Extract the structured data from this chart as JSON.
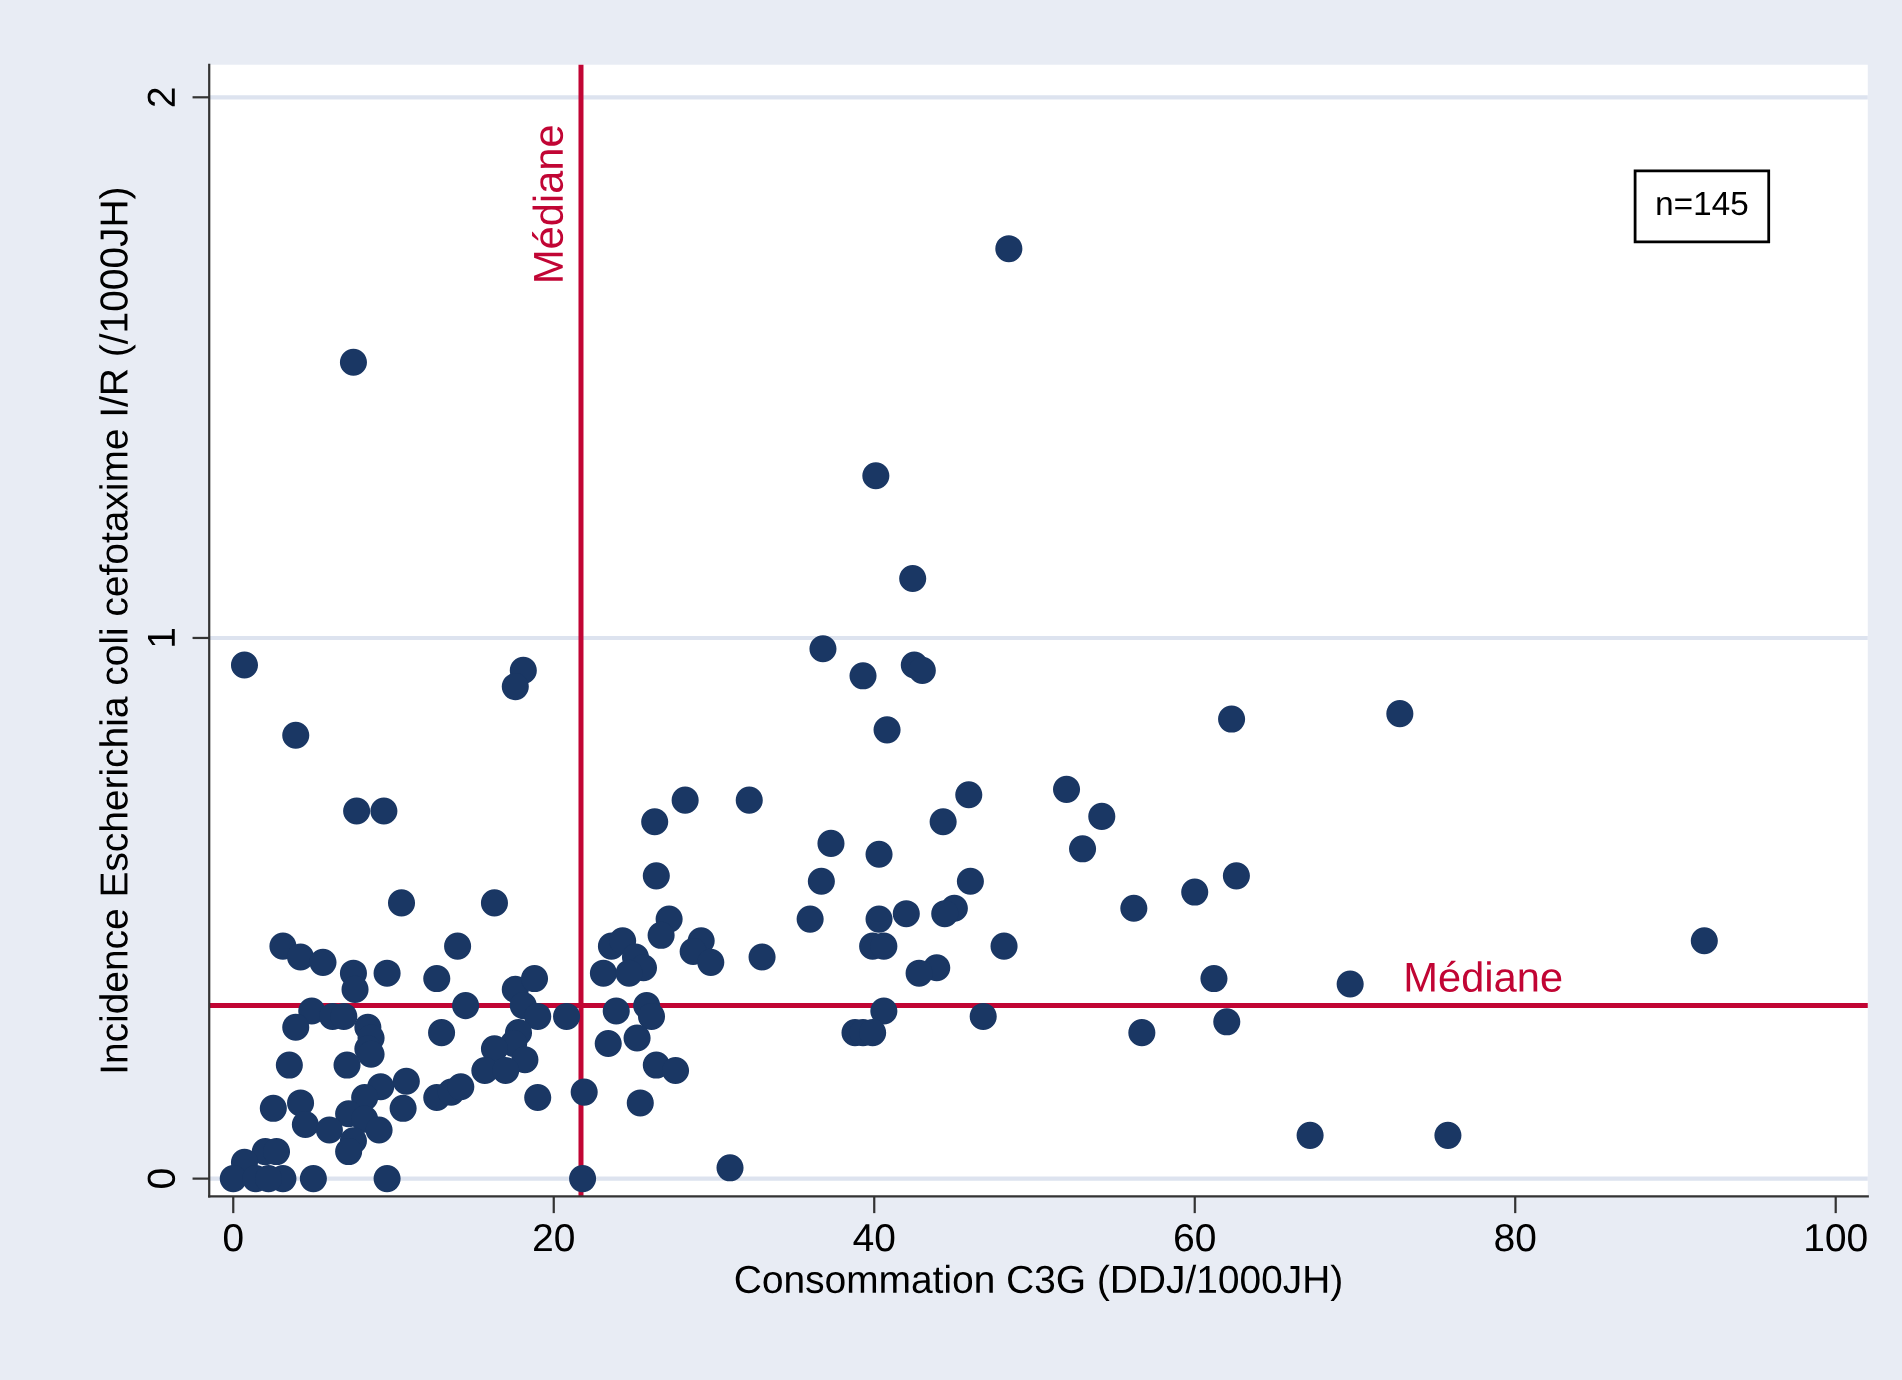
{
  "chart_data": {
    "type": "scatter",
    "xlabel": "Consommation C3G (DDJ/1000JH)",
    "ylabel": "Incidence Escherichia coli cefotaxime I/R (/1000JH)",
    "xlim": [
      -1.5,
      102
    ],
    "ylim": [
      -0.033,
      2.06
    ],
    "xticks": [
      0,
      20,
      40,
      60,
      80,
      100
    ],
    "yticks": [
      0,
      1,
      2
    ],
    "grid": "y",
    "marker": "circle",
    "annotations": [
      "n=145"
    ],
    "ref_lines": [
      {
        "axis": "x",
        "value": 21.7,
        "label": "Médiane",
        "color": "#c10534"
      },
      {
        "axis": "y",
        "value": 0.32,
        "label": "Médiane",
        "color": "#c10534"
      }
    ],
    "series": [
      {
        "color": "#1a3764",
        "x": [
          48.4,
          7.5,
          40.1,
          42.4,
          0.7,
          18.1,
          17.6,
          36.8,
          39.3,
          42.5,
          43.0,
          40.8,
          3.9,
          62.3,
          72.8,
          7.7,
          9.4,
          52.0,
          53.0,
          54.2,
          45.9,
          44.3,
          37.3,
          32.2,
          28.2,
          26.3,
          26.4,
          27.2,
          26.7,
          36.7,
          36.0,
          40.3,
          40.3,
          39.9,
          40.6,
          42.0,
          46.0,
          45.0,
          44.4,
          43.9,
          42.8,
          48.1,
          56.2,
          60.0,
          62.6,
          61.2,
          69.7,
          56.7,
          62.0,
          46.8,
          40.6,
          38.8,
          39.3,
          39.9,
          33.0,
          29.2,
          28.7,
          29.8,
          23.6,
          24.3,
          25.1,
          25.6,
          23.1,
          24.7,
          23.9,
          25.8,
          26.1,
          23.4,
          25.2,
          26.4,
          27.6,
          21.9,
          25.4,
          21.8,
          31.0,
          20.8,
          91.8,
          67.2,
          75.8,
          10.5,
          16.3,
          3.1,
          4.2,
          5.6,
          7.5,
          7.6,
          9.6,
          12.7,
          14.0,
          4.9,
          3.9,
          6.2,
          6.9,
          8.4,
          8.6,
          8.4,
          8.6,
          3.5,
          7.1,
          13.0,
          14.5,
          17.6,
          18.1,
          18.8,
          19.0,
          17.8,
          17.5,
          16.3,
          18.2,
          15.7,
          17.0,
          10.8,
          9.2,
          8.2,
          7.2,
          8.2,
          9.1,
          10.6,
          12.7,
          13.6,
          14.2,
          19.0,
          4.2,
          2.5,
          4.5,
          6.0,
          7.5,
          7.2,
          2.0,
          2.7,
          0.7,
          0.0,
          1.4,
          3.1,
          5.0,
          9.6,
          2.2
        ],
        "values": [
          1.72,
          1.51,
          1.3,
          1.11,
          0.95,
          0.94,
          0.91,
          0.98,
          0.93,
          0.95,
          0.94,
          0.83,
          0.82,
          0.85,
          0.86,
          0.68,
          0.68,
          0.72,
          0.61,
          0.67,
          0.71,
          0.66,
          0.62,
          0.7,
          0.7,
          0.66,
          0.56,
          0.48,
          0.45,
          0.55,
          0.48,
          0.6,
          0.48,
          0.43,
          0.43,
          0.49,
          0.55,
          0.5,
          0.49,
          0.39,
          0.38,
          0.43,
          0.5,
          0.53,
          0.56,
          0.37,
          0.36,
          0.27,
          0.29,
          0.3,
          0.31,
          0.27,
          0.27,
          0.27,
          0.41,
          0.44,
          0.42,
          0.4,
          0.43,
          0.44,
          0.41,
          0.39,
          0.38,
          0.38,
          0.31,
          0.32,
          0.3,
          0.25,
          0.26,
          0.21,
          0.2,
          0.16,
          0.14,
          0.0,
          0.02,
          0.3,
          0.44,
          0.08,
          0.08,
          0.51,
          0.51,
          0.43,
          0.41,
          0.4,
          0.38,
          0.35,
          0.38,
          0.37,
          0.43,
          0.31,
          0.28,
          0.3,
          0.3,
          0.28,
          0.26,
          0.24,
          0.23,
          0.21,
          0.21,
          0.27,
          0.32,
          0.35,
          0.32,
          0.37,
          0.3,
          0.27,
          0.25,
          0.24,
          0.22,
          0.2,
          0.2,
          0.18,
          0.17,
          0.15,
          0.12,
          0.11,
          0.09,
          0.13,
          0.15,
          0.16,
          0.17,
          0.15,
          0.14,
          0.13,
          0.1,
          0.09,
          0.07,
          0.05,
          0.05,
          0.05,
          0.03,
          0.0,
          0.0,
          0.0,
          0.0,
          0.0,
          0.0
        ]
      }
    ]
  }
}
